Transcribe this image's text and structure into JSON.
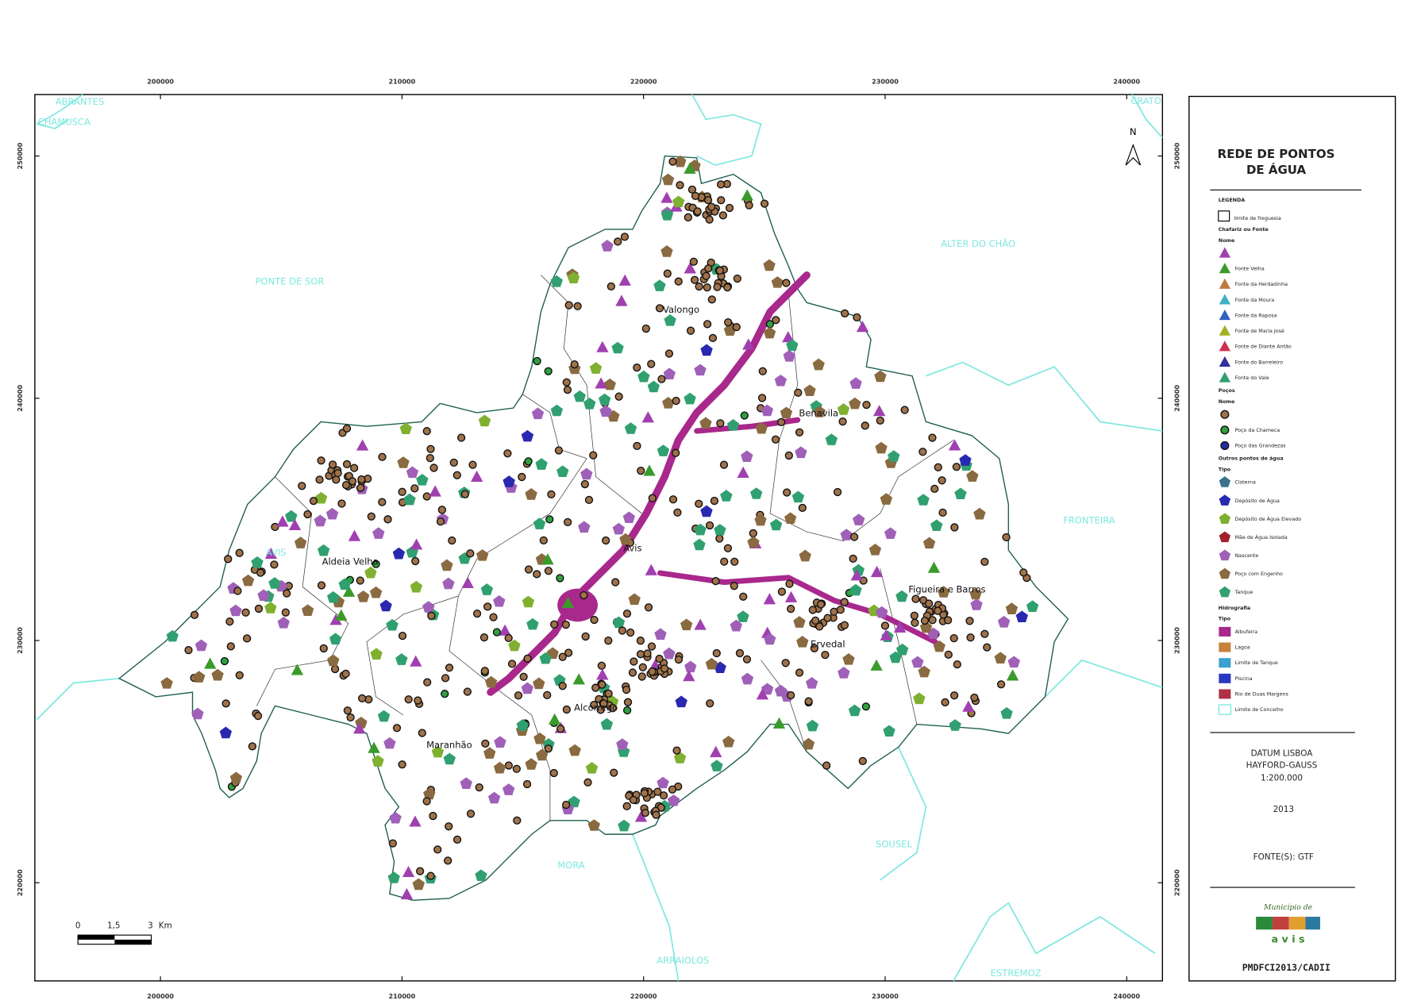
{
  "map": {
    "x_ticks": [
      200000,
      210000,
      220000,
      230000,
      240000
    ],
    "y_ticks": [
      220000,
      230000,
      240000,
      250000
    ],
    "north": "N",
    "places": [
      "Valongo",
      "Benavila",
      "Avis",
      "Aldeia Velha",
      "Figueira e Barros",
      "Ervedal",
      "Alcorrego",
      "Maranhão"
    ],
    "neighbors": [
      "ABRANTES",
      "CHAMUSCA",
      "PONTE DE SOR",
      "ALTER DO CHÃO",
      "FRONTEIRA",
      "AVIS",
      "SOUSEL",
      "MORA",
      "ARRAIOLOS",
      "ESTREMOZ",
      "CRATO"
    ],
    "scale_bar": {
      "labels": [
        "0",
        "1,5",
        "3"
      ],
      "unit": "Km"
    }
  },
  "legend": {
    "title": "REDE DE PONTOS DE ÁGUA",
    "heading": "LEGENDA",
    "boundary": "limite de freguesia",
    "groups": [
      {
        "title": "Chafariz ou Fonte",
        "subtitle": "Nome",
        "shape": "triangle",
        "items": [
          {
            "color": "#a040b0"
          },
          {
            "label": "Fonte Velha",
            "color": "#3a9a2a"
          },
          {
            "label": "Fonte da Herdadinha",
            "color": "#c07a40"
          },
          {
            "label": "Fonte da Moura",
            "color": "#40b0c8"
          },
          {
            "label": "Fonte da Raposa",
            "color": "#3060c0"
          },
          {
            "label": "Fonte de Maria José",
            "color": "#a0b020"
          },
          {
            "label": "Fonte de Diante Antão",
            "color": "#d03050"
          },
          {
            "label": "Fonte do Barreleiro",
            "color": "#3030a0"
          },
          {
            "label": "Fonte do Vale",
            "color": "#30a070"
          }
        ]
      },
      {
        "title": "Poços",
        "subtitle": "Nome",
        "shape": "circle",
        "items": [
          {
            "color": "#a0724a"
          },
          {
            "label": "Poço da Chameca",
            "color": "#30a040"
          },
          {
            "label": "Poço das Grandezas",
            "color": "#2030a0"
          }
        ]
      },
      {
        "title": "Outros pontos de água",
        "subtitle": "Tipo",
        "shape": "pentagon",
        "items": [
          {
            "label": "Cisterna",
            "color": "#3a7090"
          },
          {
            "label": "Depósito de Água",
            "color": "#2828b0"
          },
          {
            "label": "Depósito de Água Elevado",
            "color": "#80b030"
          },
          {
            "label": "Mãe de Água Isolada",
            "color": "#a02030"
          },
          {
            "label": "Nascente",
            "color": "#a060b8"
          },
          {
            "label": "Poço com Engenho",
            "color": "#8a6a40"
          },
          {
            "label": "Tanque",
            "color": "#30a070"
          }
        ]
      },
      {
        "title": "Hidrografia",
        "subtitle": "Tipo",
        "shape": "square",
        "items": [
          {
            "label": "Albufeira",
            "color": "#a8288c"
          },
          {
            "label": "Lagoa",
            "color": "#c8803a"
          },
          {
            "label": "Limite de Tanque",
            "color": "#3aa0d0"
          },
          {
            "label": "Piscina",
            "color": "#2838c0"
          },
          {
            "label": "Rio de Duas Margens",
            "color": "#b03048"
          },
          {
            "label": "Limite de Concelho",
            "color": "#7fe8e0",
            "outline": true
          }
        ]
      }
    ]
  },
  "footer": {
    "datum": "DATUM LISBOA",
    "projection": "HAYFORD-GAUSS",
    "scale": "1:200.000",
    "year": "2013",
    "source": "FONTE(S): GTF",
    "logo_caption": "Município de",
    "logo_text": "a v i s",
    "code": "PMDFCI2013/CADII"
  }
}
